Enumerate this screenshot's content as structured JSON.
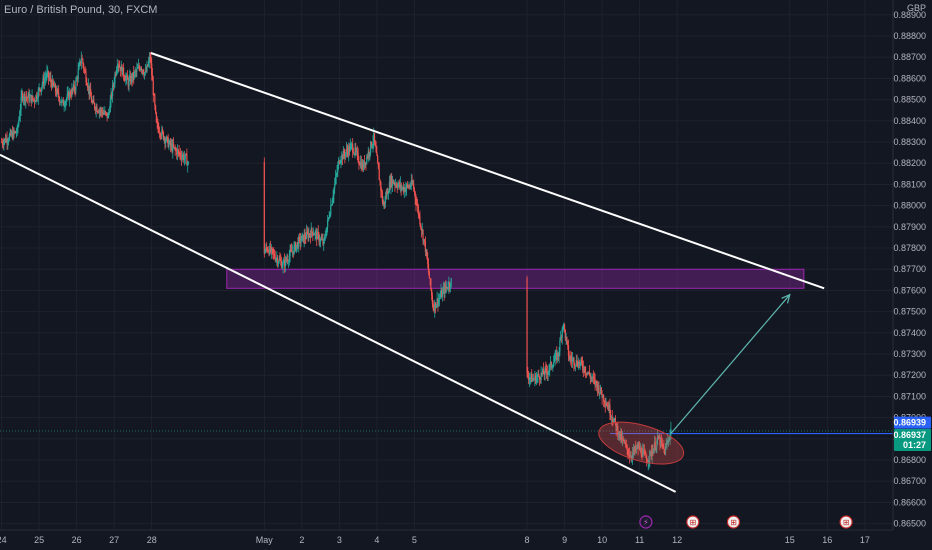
{
  "header": {
    "title": "Euro / British Pound, 30, FXCM"
  },
  "colors": {
    "background": "#131722",
    "up": "#26a69a",
    "down": "#ef5350",
    "grid": "#1e222d",
    "axis_text": "#b2b5be",
    "channel": "#ffffff",
    "zone": "#9c27b0",
    "level": "#2962ff",
    "arrow": "#5fb8b0"
  },
  "chart_data": {
    "type": "candlestick",
    "title": "Euro / British Pound, 30, FXCM",
    "currency_label": "GBP",
    "y_range": [
      0.8647,
      0.8897
    ],
    "y_ticks": [
      "0.88900",
      "0.88800",
      "0.88700",
      "0.88600",
      "0.88500",
      "0.88400",
      "0.88300",
      "0.88200",
      "0.88100",
      "0.88000",
      "0.87900",
      "0.87800",
      "0.87700",
      "0.87600",
      "0.87500",
      "0.87400",
      "0.87300",
      "0.87200",
      "0.87100",
      "0.87000",
      "0.86900",
      "0.86800",
      "0.86700",
      "0.86600",
      "0.86500"
    ],
    "x_range": [
      "Apr 23 23:00",
      "May 17 18:00"
    ],
    "x_ticks": [
      "24",
      "25",
      "26",
      "27",
      "28",
      "May",
      "2",
      "3",
      "4",
      "5",
      "8",
      "9",
      "10",
      "11",
      "12",
      "15",
      "16",
      "17"
    ],
    "price_path": [
      {
        "x": "Apr 24 00:00",
        "y": 0.883
      },
      {
        "x": "Apr 24 10:00",
        "y": 0.8835
      },
      {
        "x": "Apr 24 13:00",
        "y": 0.8852
      },
      {
        "x": "Apr 24 21:00",
        "y": 0.885
      },
      {
        "x": "Apr 25 05:00",
        "y": 0.8862
      },
      {
        "x": "Apr 25 15:00",
        "y": 0.8848
      },
      {
        "x": "Apr 25 23:00",
        "y": 0.8856
      },
      {
        "x": "Apr 26 03:00",
        "y": 0.887
      },
      {
        "x": "Apr 26 10:00",
        "y": 0.8848
      },
      {
        "x": "Apr 26 20:00",
        "y": 0.8842
      },
      {
        "x": "Apr 27 02:00",
        "y": 0.8868
      },
      {
        "x": "Apr 27 09:00",
        "y": 0.8858
      },
      {
        "x": "Apr 27 17:00",
        "y": 0.8866
      },
      {
        "x": "Apr 27 20:00",
        "y": 0.8862
      },
      {
        "x": "Apr 27 23:00",
        "y": 0.887
      },
      {
        "x": "Apr 28 03:00",
        "y": 0.8838
      },
      {
        "x": "Apr 28 12:00",
        "y": 0.8828
      },
      {
        "x": "Apr 28 22:00",
        "y": 0.8822
      },
      {
        "x": "Apr 29 05:00",
        "y": 0.881
      },
      {
        "x": "Apr 29 12:00",
        "y": 0.877
      },
      {
        "x": "Apr 29 20:00",
        "y": 0.8764
      },
      {
        "x": "Apr 30 05:00",
        "y": 0.8763
      },
      {
        "x": "May 1 02:00",
        "y": 0.878
      },
      {
        "x": "May 1 12:00",
        "y": 0.8772
      },
      {
        "x": "May 1 22:00",
        "y": 0.8783
      },
      {
        "x": "May 2 07:00",
        "y": 0.8788
      },
      {
        "x": "May 2 14:00",
        "y": 0.8782
      },
      {
        "x": "May 2 21:00",
        "y": 0.881
      },
      {
        "x": "May 3 00:00",
        "y": 0.8822
      },
      {
        "x": "May 3 08:00",
        "y": 0.8828
      },
      {
        "x": "May 3 15:00",
        "y": 0.8818
      },
      {
        "x": "May 3 22:00",
        "y": 0.8832
      },
      {
        "x": "May 4 04:00",
        "y": 0.88
      },
      {
        "x": "May 4 09:00",
        "y": 0.8812
      },
      {
        "x": "May 4 17:00",
        "y": 0.8808
      },
      {
        "x": "May 4 23:00",
        "y": 0.881
      },
      {
        "x": "May 5 07:00",
        "y": 0.878
      },
      {
        "x": "May 5 12:00",
        "y": 0.8752
      },
      {
        "x": "May 5 19:00",
        "y": 0.876
      },
      {
        "x": "May 6 00:00",
        "y": 0.8765
      },
      {
        "x": "May 6 09:00",
        "y": 0.8755
      },
      {
        "x": "May 6 18:00",
        "y": 0.8735
      },
      {
        "x": "May 8 04:00",
        "y": 0.8718
      },
      {
        "x": "May 8 13:00",
        "y": 0.8722
      },
      {
        "x": "May 8 20:00",
        "y": 0.873
      },
      {
        "x": "May 8 23:00",
        "y": 0.8745
      },
      {
        "x": "May 9 03:00",
        "y": 0.8728
      },
      {
        "x": "May 9 11:00",
        "y": 0.8725
      },
      {
        "x": "May 9 21:00",
        "y": 0.8715
      },
      {
        "x": "May 10 04:00",
        "y": 0.8705
      },
      {
        "x": "May 10 11:00",
        "y": 0.8692
      },
      {
        "x": "May 10 18:00",
        "y": 0.8682
      },
      {
        "x": "May 10 23:00",
        "y": 0.8686
      },
      {
        "x": "May 11 05:00",
        "y": 0.868
      },
      {
        "x": "May 11 12:00",
        "y": 0.869
      },
      {
        "x": "May 11 16:00",
        "y": 0.8684
      },
      {
        "x": "May 11 20:00",
        "y": 0.8694
      }
    ],
    "channel": {
      "upper": [
        {
          "x": "Apr 27 23:30",
          "y": 0.8872
        },
        {
          "x": "May 15 22:00",
          "y": 0.8761
        }
      ],
      "lower": [
        {
          "x": "Apr 23 23:00",
          "y": 0.8824
        },
        {
          "x": "May 11 23:00",
          "y": 0.8665
        }
      ]
    },
    "zone": {
      "x_start": "Apr 30 00:00",
      "x_end": "May 15 09:00",
      "y_top": 0.877,
      "y_bottom": 0.8761
    },
    "level_line": {
      "x_start": "May 10 05:00",
      "y": 0.86925
    },
    "projection_arrow": {
      "from": {
        "x": "May 11 20:00",
        "y": 0.86925
      },
      "to": {
        "x": "May 15 00:00",
        "y": 0.8758
      }
    },
    "highlight_ellipse": {
      "center": {
        "x": "May 11 01:00",
        "y": 0.8688
      },
      "rx_hours": 28,
      "ry": 0.00084
    },
    "price_labels": [
      {
        "value": "0.86939",
        "color": "#2962ff"
      },
      {
        "value": "0.86937",
        "sub": "01:27",
        "color": "#089981"
      }
    ],
    "event_markers": [
      {
        "x": "May 11 04:00",
        "glyph": "⚡"
      },
      {
        "x": "May 12 10:00",
        "glyph": "⊞"
      },
      {
        "x": "May 13 12:00",
        "glyph": "⊞"
      },
      {
        "x": "May 16 12:00",
        "glyph": "⊞"
      }
    ]
  }
}
